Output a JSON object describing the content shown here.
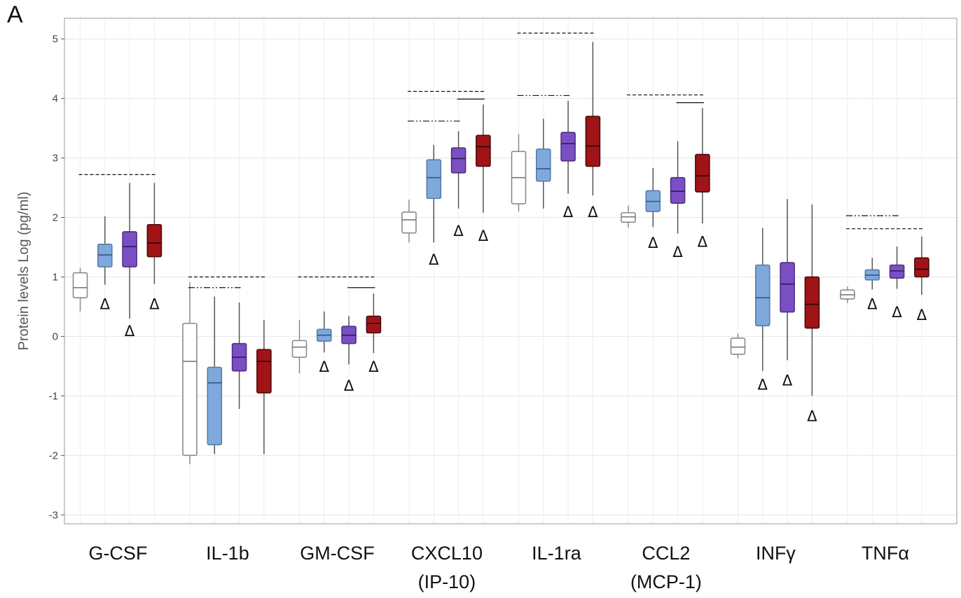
{
  "panel_label": "A",
  "chart_data": {
    "type": "box",
    "title": "",
    "xlabel": "",
    "ylabel": "Protein levels Log (pg/ml)",
    "ylim": [
      -3.15,
      5.35
    ],
    "yticks": [
      "5",
      "4",
      "3",
      "2",
      "1",
      "0",
      "-1",
      "-2",
      "-3"
    ],
    "grid": true,
    "legend": "none",
    "categories": [
      {
        "label": "G-CSF",
        "sublabel": ""
      },
      {
        "label": "IL-1b",
        "sublabel": ""
      },
      {
        "label": "GM-CSF",
        "sublabel": ""
      },
      {
        "label": "CXCL10",
        "sublabel": "(IP-10)"
      },
      {
        "label": "IL-1ra",
        "sublabel": ""
      },
      {
        "label": "CCL2",
        "sublabel": "(MCP-1)"
      },
      {
        "label": "INFγ",
        "sublabel": ""
      },
      {
        "label": "TNFα",
        "sublabel": ""
      }
    ],
    "groups": [
      {
        "fill": "#ffffff",
        "edge": "#8a8a8a"
      },
      {
        "fill": "#7fa8dc",
        "edge": "#5a7ca8"
      },
      {
        "fill": "#7b4fc4",
        "edge": "#4e2f86"
      },
      {
        "fill": "#a01418",
        "edge": "#4a0a0a"
      }
    ],
    "boxes": [
      [
        {
          "min": 0.42,
          "q1": 0.65,
          "median": 0.82,
          "q3": 1.07,
          "max": 1.15
        },
        {
          "min": 0.87,
          "q1": 1.17,
          "median": 1.37,
          "q3": 1.55,
          "max": 2.02
        },
        {
          "min": 0.3,
          "q1": 1.17,
          "median": 1.51,
          "q3": 1.76,
          "max": 2.58
        },
        {
          "min": 0.88,
          "q1": 1.34,
          "median": 1.57,
          "q3": 1.88,
          "max": 2.58
        }
      ],
      [
        {
          "min": -2.15,
          "q1": -2.0,
          "median": -0.42,
          "q3": 0.22,
          "max": 0.91
        },
        {
          "min": -1.98,
          "q1": -1.82,
          "median": -0.78,
          "q3": -0.52,
          "max": 0.67
        },
        {
          "min": -1.22,
          "q1": -0.58,
          "median": -0.35,
          "q3": -0.12,
          "max": 0.57
        },
        {
          "min": -1.98,
          "q1": -0.95,
          "median": -0.42,
          "q3": -0.22,
          "max": 0.28
        }
      ],
      [
        {
          "min": -0.62,
          "q1": -0.35,
          "median": -0.18,
          "q3": -0.07,
          "max": 0.28
        },
        {
          "min": -0.27,
          "q1": -0.08,
          "median": 0.02,
          "q3": 0.12,
          "max": 0.42
        },
        {
          "min": -0.47,
          "q1": -0.12,
          "median": 0.02,
          "q3": 0.17,
          "max": 0.34
        },
        {
          "min": -0.28,
          "q1": 0.06,
          "median": 0.22,
          "q3": 0.34,
          "max": 0.72
        }
      ],
      [
        {
          "min": 1.58,
          "q1": 1.74,
          "median": 1.96,
          "q3": 2.09,
          "max": 2.3
        },
        {
          "min": 1.58,
          "q1": 2.32,
          "median": 2.67,
          "q3": 2.97,
          "max": 3.22
        },
        {
          "min": 2.15,
          "q1": 2.75,
          "median": 2.99,
          "q3": 3.17,
          "max": 3.45
        },
        {
          "min": 2.08,
          "q1": 2.86,
          "median": 3.19,
          "q3": 3.38,
          "max": 3.9
        }
      ],
      [
        {
          "min": 2.1,
          "q1": 2.23,
          "median": 2.67,
          "q3": 3.11,
          "max": 3.4
        },
        {
          "min": 2.15,
          "q1": 2.61,
          "median": 2.82,
          "q3": 3.15,
          "max": 3.66
        },
        {
          "min": 2.4,
          "q1": 2.95,
          "median": 3.24,
          "q3": 3.43,
          "max": 3.96
        },
        {
          "min": 2.37,
          "q1": 2.86,
          "median": 3.2,
          "q3": 3.7,
          "max": 4.95
        }
      ],
      [
        {
          "min": 1.83,
          "q1": 1.92,
          "median": 2.01,
          "q3": 2.08,
          "max": 2.2
        },
        {
          "min": 1.84,
          "q1": 2.1,
          "median": 2.27,
          "q3": 2.45,
          "max": 2.83
        },
        {
          "min": 1.73,
          "q1": 2.24,
          "median": 2.44,
          "q3": 2.67,
          "max": 3.28
        },
        {
          "min": 1.9,
          "q1": 2.43,
          "median": 2.7,
          "q3": 3.06,
          "max": 3.84
        }
      ],
      [
        {
          "min": -0.37,
          "q1": -0.3,
          "median": -0.18,
          "q3": -0.03,
          "max": 0.05
        },
        {
          "min": -0.58,
          "q1": 0.18,
          "median": 0.65,
          "q3": 1.2,
          "max": 1.82
        },
        {
          "min": -0.4,
          "q1": 0.41,
          "median": 0.88,
          "q3": 1.24,
          "max": 2.31
        },
        {
          "min": -1.0,
          "q1": 0.14,
          "median": 0.54,
          "q3": 1.0,
          "max": 2.22
        }
      ],
      [
        {
          "min": 0.56,
          "q1": 0.63,
          "median": 0.7,
          "q3": 0.78,
          "max": 0.84
        },
        {
          "min": 0.79,
          "q1": 0.95,
          "median": 1.03,
          "q3": 1.12,
          "max": 1.32
        },
        {
          "min": 0.8,
          "q1": 0.98,
          "median": 1.1,
          "q3": 1.2,
          "max": 1.51
        },
        {
          "min": 0.7,
          "q1": 1.0,
          "median": 1.13,
          "q3": 1.32,
          "max": 1.68
        }
      ]
    ],
    "marker_symbol": "Δ",
    "markers": [
      {
        "category": 0,
        "group": 1,
        "y": 0.55
      },
      {
        "category": 0,
        "group": 2,
        "y": 0.1
      },
      {
        "category": 0,
        "group": 3,
        "y": 0.55
      },
      {
        "category": 2,
        "group": 1,
        "y": -0.5
      },
      {
        "category": 2,
        "group": 2,
        "y": -0.82
      },
      {
        "category": 2,
        "group": 3,
        "y": -0.5
      },
      {
        "category": 3,
        "group": 1,
        "y": 1.3
      },
      {
        "category": 3,
        "group": 2,
        "y": 1.78
      },
      {
        "category": 3,
        "group": 3,
        "y": 1.7
      },
      {
        "category": 4,
        "group": 2,
        "y": 2.1
      },
      {
        "category": 4,
        "group": 3,
        "y": 2.1
      },
      {
        "category": 5,
        "group": 1,
        "y": 1.58
      },
      {
        "category": 5,
        "group": 2,
        "y": 1.43
      },
      {
        "category": 5,
        "group": 3,
        "y": 1.6
      },
      {
        "category": 6,
        "group": 1,
        "y": -0.8
      },
      {
        "category": 6,
        "group": 2,
        "y": -0.73
      },
      {
        "category": 6,
        "group": 3,
        "y": -1.33
      },
      {
        "category": 7,
        "group": 1,
        "y": 0.55
      },
      {
        "category": 7,
        "group": 2,
        "y": 0.42
      },
      {
        "category": 7,
        "group": 3,
        "y": 0.37
      }
    ],
    "comparison_lines": [
      {
        "category": 0,
        "from_group": 0,
        "to_group": 3,
        "y": 2.72,
        "style": "dashed"
      },
      {
        "category": 1,
        "from_group": 0,
        "to_group": 3,
        "y": 1.0,
        "style": "dashed"
      },
      {
        "category": 1,
        "from_group": 0,
        "to_group": 2,
        "y": 0.82,
        "style": "dashdot"
      },
      {
        "category": 2,
        "from_group": 0,
        "to_group": 3,
        "y": 1.0,
        "style": "dashed"
      },
      {
        "category": 2,
        "from_group": 2,
        "to_group": 3,
        "y": 0.82,
        "style": "solid"
      },
      {
        "category": 3,
        "from_group": 0,
        "to_group": 3,
        "y": 4.12,
        "style": "dashed"
      },
      {
        "category": 3,
        "from_group": 2,
        "to_group": 3,
        "y": 3.99,
        "style": "solid"
      },
      {
        "category": 3,
        "from_group": 0,
        "to_group": 2,
        "y": 3.62,
        "style": "dashdot"
      },
      {
        "category": 4,
        "from_group": 0,
        "to_group": 3,
        "y": 5.1,
        "style": "dashed"
      },
      {
        "category": 4,
        "from_group": 0,
        "to_group": 2,
        "y": 4.05,
        "style": "dashdot"
      },
      {
        "category": 5,
        "from_group": 0,
        "to_group": 3,
        "y": 4.06,
        "style": "dashed"
      },
      {
        "category": 5,
        "from_group": 2,
        "to_group": 3,
        "y": 3.93,
        "style": "solid"
      },
      {
        "category": 7,
        "from_group": 0,
        "to_group": 2,
        "y": 2.03,
        "style": "dashdot"
      },
      {
        "category": 7,
        "from_group": 0,
        "to_group": 3,
        "y": 1.81,
        "style": "dashed"
      }
    ]
  }
}
